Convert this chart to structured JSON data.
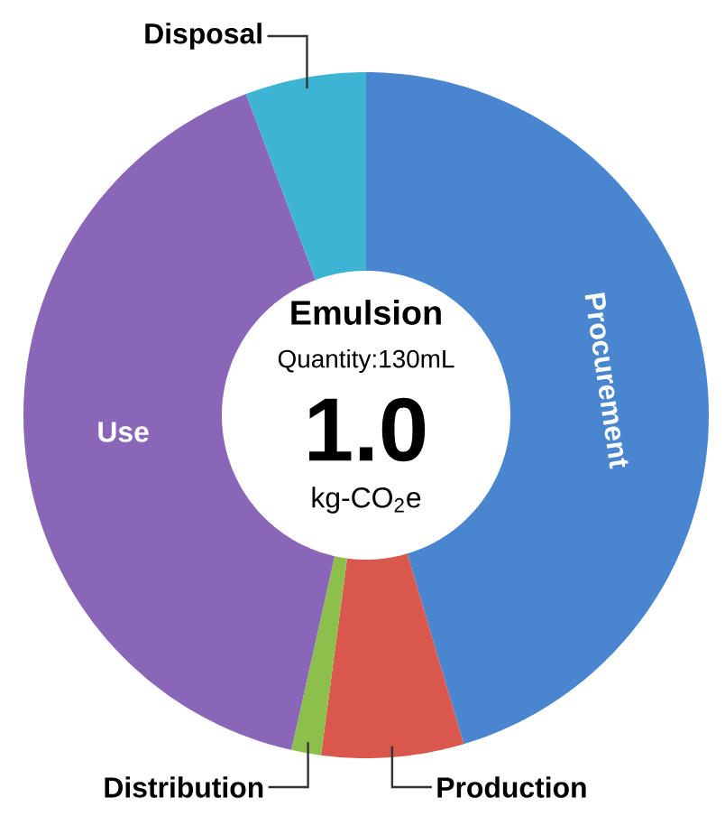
{
  "chart_data": {
    "type": "donut",
    "title": "Emulsion",
    "subtitle": "Quantity:130mL",
    "annotations": [
      "1.0",
      "kg-CO$_{2}$e"
    ],
    "categories": [
      "Procurement",
      "Production",
      "Distribution",
      "Use",
      "Disposal"
    ],
    "values": [
      45.4,
      6.7,
      1.4,
      40.8,
      5.7
    ],
    "colors": [
      "#4a86d0",
      "#d9574c",
      "#8dc04a",
      "#8a66b8",
      "#3db4d4"
    ]
  }
}
